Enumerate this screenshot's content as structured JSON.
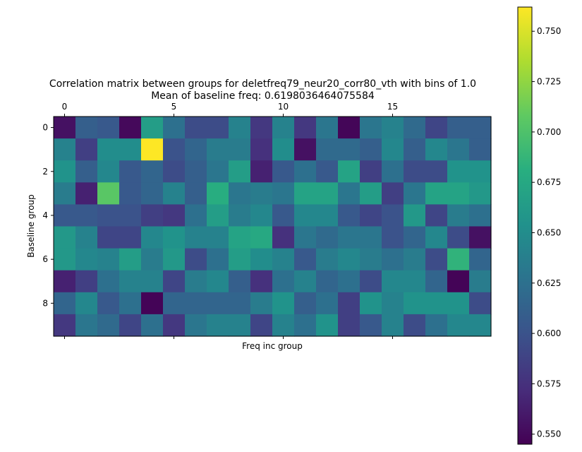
{
  "chart_data": {
    "type": "heatmap",
    "title": "Correlation matrix between groups for deletfreq79_neur20_corr80_vth with bins of 1.0",
    "subtitle": "Mean of baseline freq: 0.6198036464075584",
    "xlabel": "Freq inc group",
    "ylabel": "Baseline group",
    "x_ticks": [
      "0",
      "5",
      "10",
      "15"
    ],
    "y_ticks": [
      "0",
      "2",
      "4",
      "6",
      "8"
    ],
    "n_cols": 20,
    "n_rows": 10,
    "colormap": "viridis",
    "colorbar": {
      "min": 0.545,
      "max": 0.762,
      "ticks": [
        "0.550",
        "0.575",
        "0.600",
        "0.625",
        "0.650",
        "0.675",
        "0.700",
        "0.725",
        "0.750"
      ]
    },
    "values": [
      [
        0.555,
        0.61,
        0.605,
        0.55,
        0.665,
        0.625,
        0.595,
        0.595,
        0.64,
        0.58,
        0.64,
        0.58,
        0.63,
        0.548,
        0.63,
        0.64,
        0.62,
        0.59,
        0.61,
        0.61
      ],
      [
        0.64,
        0.585,
        0.65,
        0.65,
        0.762,
        0.6,
        0.615,
        0.635,
        0.635,
        0.575,
        0.65,
        0.555,
        0.62,
        0.62,
        0.61,
        0.645,
        0.61,
        0.645,
        0.63,
        0.61
      ],
      [
        0.655,
        0.61,
        0.645,
        0.605,
        0.615,
        0.595,
        0.61,
        0.63,
        0.665,
        0.565,
        0.605,
        0.625,
        0.605,
        0.67,
        0.585,
        0.625,
        0.595,
        0.595,
        0.655,
        0.655
      ],
      [
        0.635,
        0.565,
        0.705,
        0.605,
        0.615,
        0.64,
        0.61,
        0.68,
        0.63,
        0.635,
        0.63,
        0.67,
        0.67,
        0.63,
        0.665,
        0.585,
        0.63,
        0.67,
        0.67,
        0.66
      ],
      [
        0.605,
        0.605,
        0.6,
        0.6,
        0.585,
        0.58,
        0.625,
        0.665,
        0.635,
        0.645,
        0.605,
        0.645,
        0.645,
        0.605,
        0.59,
        0.6,
        0.66,
        0.59,
        0.635,
        0.625
      ],
      [
        0.66,
        0.64,
        0.59,
        0.59,
        0.645,
        0.655,
        0.64,
        0.64,
        0.67,
        0.675,
        0.575,
        0.63,
        0.62,
        0.63,
        0.63,
        0.6,
        0.615,
        0.645,
        0.595,
        0.555
      ],
      [
        0.66,
        0.645,
        0.64,
        0.665,
        0.635,
        0.66,
        0.595,
        0.625,
        0.665,
        0.65,
        0.64,
        0.605,
        0.635,
        0.645,
        0.635,
        0.625,
        0.635,
        0.595,
        0.685,
        0.615
      ],
      [
        0.565,
        0.585,
        0.625,
        0.64,
        0.64,
        0.59,
        0.635,
        0.645,
        0.61,
        0.575,
        0.625,
        0.64,
        0.615,
        0.625,
        0.595,
        0.645,
        0.645,
        0.615,
        0.547,
        0.635
      ],
      [
        0.615,
        0.645,
        0.605,
        0.625,
        0.547,
        0.615,
        0.615,
        0.615,
        0.615,
        0.635,
        0.655,
        0.61,
        0.625,
        0.585,
        0.655,
        0.64,
        0.655,
        0.655,
        0.655,
        0.595
      ],
      [
        0.58,
        0.63,
        0.62,
        0.59,
        0.625,
        0.58,
        0.63,
        0.64,
        0.64,
        0.59,
        0.64,
        0.625,
        0.655,
        0.585,
        0.605,
        0.64,
        0.595,
        0.625,
        0.645,
        0.645
      ]
    ]
  }
}
